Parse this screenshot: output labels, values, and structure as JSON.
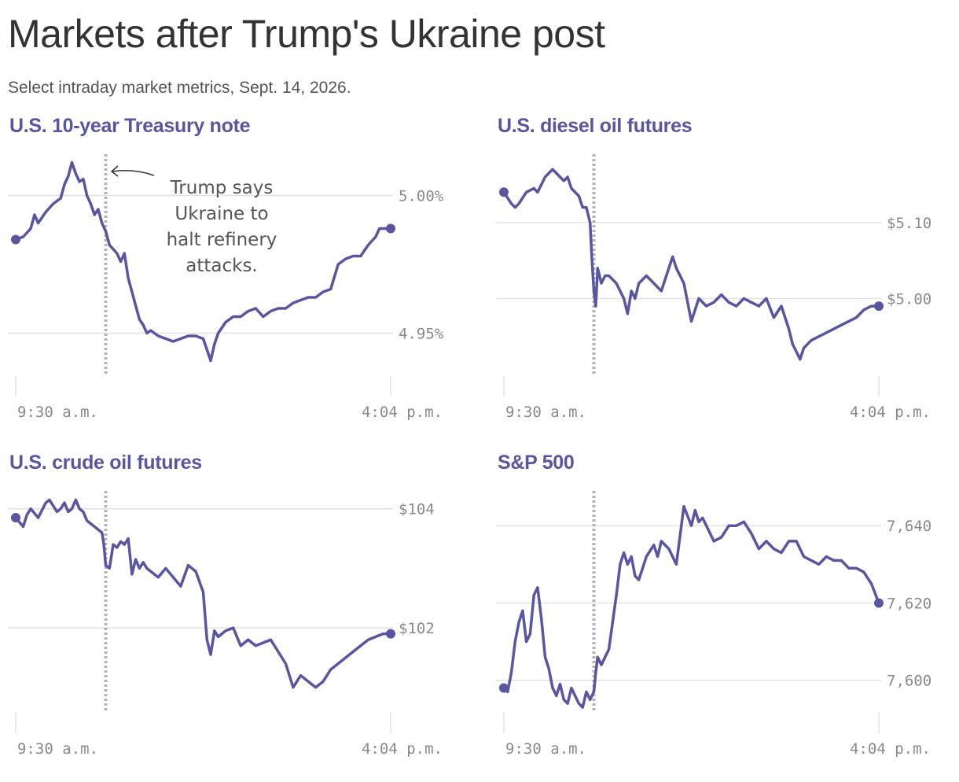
{
  "header": {
    "title": "Markets after Trump's Ukraine post",
    "subtitle": "Select intraday market metrics, Sept. 14, 2026."
  },
  "colors": {
    "line": "#5a55a0",
    "grid": "#e2e2e2",
    "event_line": "#b4b4b4",
    "tick_text": "#8a8a8a"
  },
  "chart_data": [
    {
      "type": "line",
      "title": "U.S. 10-year Treasury note",
      "x_ticks": [
        "9:30 a.m.",
        "4:04 p.m."
      ],
      "y_ticks": [
        {
          "value": 5.0,
          "label": "5.00%"
        },
        {
          "value": 4.95,
          "label": "4.95%"
        }
      ],
      "ylim": [
        4.935,
        5.015
      ],
      "event_x": 0.24,
      "annotation": [
        "Trump says",
        "Ukraine to",
        "halt refinery",
        "attacks."
      ],
      "series": [
        {
          "x": [
            0,
            0.02,
            0.04,
            0.05,
            0.06,
            0.08,
            0.1,
            0.12,
            0.13,
            0.14,
            0.15,
            0.16,
            0.17,
            0.18,
            0.19,
            0.2,
            0.21,
            0.22,
            0.23,
            0.24,
            0.25,
            0.27,
            0.28,
            0.29,
            0.3,
            0.31,
            0.32,
            0.33,
            0.34,
            0.35,
            0.36,
            0.38,
            0.4,
            0.42,
            0.44,
            0.46,
            0.48,
            0.5,
            0.51,
            0.52,
            0.53,
            0.54,
            0.56,
            0.58,
            0.6,
            0.62,
            0.64,
            0.66,
            0.68,
            0.7,
            0.72,
            0.74,
            0.76,
            0.78,
            0.8,
            0.82,
            0.84,
            0.86,
            0.88,
            0.9,
            0.92,
            0.94,
            0.96,
            0.97,
            0.98,
            1.0
          ],
          "values": [
            4.984,
            4.985,
            4.988,
            4.993,
            4.99,
            4.994,
            4.997,
            4.999,
            5.004,
            5.007,
            5.012,
            5.008,
            5.005,
            5.006,
            5.0,
            4.997,
            4.993,
            4.995,
            4.99,
            4.987,
            4.982,
            4.979,
            4.976,
            4.979,
            4.97,
            4.965,
            4.96,
            4.955,
            4.953,
            4.95,
            4.951,
            4.949,
            4.948,
            4.947,
            4.948,
            4.949,
            4.949,
            4.948,
            4.944,
            4.94,
            4.946,
            4.95,
            4.954,
            4.956,
            4.956,
            4.958,
            4.959,
            4.956,
            4.958,
            4.959,
            4.959,
            4.961,
            4.962,
            4.963,
            4.963,
            4.965,
            4.966,
            4.975,
            4.977,
            4.978,
            4.978,
            4.982,
            4.985,
            4.988,
            4.988,
            4.988
          ]
        }
      ]
    },
    {
      "type": "line",
      "title": "U.S. diesel oil futures",
      "x_ticks": [
        "9:30 a.m.",
        "4:04 p.m."
      ],
      "y_ticks": [
        {
          "value": 5.1,
          "label": "$5.10"
        },
        {
          "value": 5.0,
          "label": "$5.00"
        }
      ],
      "ylim": [
        4.9,
        5.19
      ],
      "event_x": 0.24,
      "series": [
        {
          "x": [
            0,
            0.02,
            0.03,
            0.04,
            0.06,
            0.08,
            0.09,
            0.1,
            0.11,
            0.12,
            0.13,
            0.14,
            0.15,
            0.16,
            0.17,
            0.18,
            0.2,
            0.21,
            0.22,
            0.23,
            0.235,
            0.24,
            0.245,
            0.25,
            0.26,
            0.27,
            0.28,
            0.3,
            0.32,
            0.33,
            0.34,
            0.35,
            0.36,
            0.38,
            0.4,
            0.42,
            0.44,
            0.45,
            0.46,
            0.47,
            0.48,
            0.5,
            0.52,
            0.54,
            0.56,
            0.58,
            0.6,
            0.62,
            0.64,
            0.66,
            0.68,
            0.7,
            0.72,
            0.74,
            0.76,
            0.77,
            0.78,
            0.79,
            0.8,
            0.82,
            0.84,
            0.86,
            0.88,
            0.9,
            0.92,
            0.94,
            0.96,
            0.98,
            1.0
          ],
          "values": [
            5.14,
            5.125,
            5.12,
            5.125,
            5.14,
            5.145,
            5.14,
            5.15,
            5.16,
            5.165,
            5.17,
            5.165,
            5.16,
            5.155,
            5.16,
            5.145,
            5.135,
            5.12,
            5.12,
            5.1,
            5.05,
            5.01,
            4.99,
            5.04,
            5.02,
            5.03,
            5.03,
            5.02,
            5.0,
            4.98,
            5.01,
            5.0,
            5.02,
            5.03,
            5.02,
            5.01,
            5.04,
            5.055,
            5.04,
            5.03,
            5.02,
            4.97,
            5.0,
            4.99,
            4.995,
            5.005,
            4.995,
            4.99,
            5.0,
            4.995,
            4.99,
            5.0,
            4.975,
            4.99,
            4.96,
            4.94,
            4.93,
            4.92,
            4.935,
            4.945,
            4.95,
            4.955,
            4.96,
            4.965,
            4.97,
            4.975,
            4.985,
            4.99,
            4.99
          ]
        }
      ]
    },
    {
      "type": "line",
      "title": "U.S. crude oil futures",
      "x_ticks": [
        "9:30 a.m.",
        "4:04 p.m."
      ],
      "y_ticks": [
        {
          "value": 104,
          "label": "$104"
        },
        {
          "value": 102,
          "label": "$102"
        }
      ],
      "ylim": [
        100.6,
        104.3
      ],
      "event_x": 0.24,
      "series": [
        {
          "x": [
            0,
            0.02,
            0.03,
            0.04,
            0.06,
            0.08,
            0.09,
            0.1,
            0.11,
            0.12,
            0.13,
            0.14,
            0.15,
            0.16,
            0.17,
            0.18,
            0.19,
            0.2,
            0.21,
            0.22,
            0.23,
            0.235,
            0.24,
            0.25,
            0.26,
            0.27,
            0.28,
            0.29,
            0.3,
            0.31,
            0.32,
            0.33,
            0.34,
            0.35,
            0.36,
            0.38,
            0.4,
            0.42,
            0.44,
            0.46,
            0.48,
            0.5,
            0.51,
            0.52,
            0.53,
            0.54,
            0.56,
            0.58,
            0.6,
            0.62,
            0.64,
            0.66,
            0.68,
            0.7,
            0.72,
            0.74,
            0.76,
            0.78,
            0.8,
            0.82,
            0.84,
            0.86,
            0.88,
            0.9,
            0.92,
            0.94,
            0.96,
            0.98,
            1.0
          ],
          "values": [
            103.85,
            103.7,
            103.9,
            104.0,
            103.85,
            104.1,
            104.15,
            104.05,
            103.95,
            104.0,
            104.1,
            103.95,
            104.0,
            104.15,
            104.0,
            103.95,
            103.8,
            103.75,
            103.7,
            103.65,
            103.6,
            103.4,
            103.05,
            103.0,
            103.4,
            103.35,
            103.45,
            103.4,
            103.5,
            102.9,
            103.15,
            103.0,
            103.1,
            103.0,
            102.95,
            102.85,
            103.0,
            102.85,
            102.7,
            103.05,
            102.95,
            102.6,
            101.8,
            101.55,
            101.95,
            101.85,
            101.95,
            102.0,
            101.7,
            101.8,
            101.7,
            101.75,
            101.8,
            101.6,
            101.4,
            101.0,
            101.2,
            101.1,
            101.0,
            101.1,
            101.3,
            101.4,
            101.5,
            101.6,
            101.7,
            101.8,
            101.85,
            101.9,
            101.9
          ]
        }
      ]
    },
    {
      "type": "line",
      "title": "S&P 500",
      "x_ticks": [
        "9:30 a.m.",
        "4:04 p.m."
      ],
      "y_ticks": [
        {
          "value": 7640,
          "label": "7,640"
        },
        {
          "value": 7620,
          "label": "7,620"
        },
        {
          "value": 7600,
          "label": "7,600"
        }
      ],
      "ylim": [
        7592,
        7649
      ],
      "event_x": 0.24,
      "series": [
        {
          "x": [
            0,
            0.01,
            0.02,
            0.03,
            0.04,
            0.05,
            0.06,
            0.07,
            0.08,
            0.09,
            0.1,
            0.11,
            0.12,
            0.13,
            0.14,
            0.15,
            0.16,
            0.17,
            0.18,
            0.19,
            0.2,
            0.21,
            0.22,
            0.23,
            0.24,
            0.245,
            0.25,
            0.26,
            0.27,
            0.28,
            0.3,
            0.31,
            0.32,
            0.33,
            0.34,
            0.35,
            0.36,
            0.38,
            0.4,
            0.41,
            0.42,
            0.44,
            0.46,
            0.48,
            0.5,
            0.51,
            0.52,
            0.53,
            0.54,
            0.56,
            0.58,
            0.6,
            0.62,
            0.64,
            0.66,
            0.68,
            0.7,
            0.72,
            0.74,
            0.76,
            0.78,
            0.8,
            0.82,
            0.84,
            0.86,
            0.88,
            0.9,
            0.92,
            0.94,
            0.96,
            0.98,
            1.0
          ],
          "values": [
            7598,
            7597,
            7602,
            7610,
            7615,
            7618,
            7610,
            7612,
            7622,
            7624,
            7616,
            7606,
            7603,
            7598,
            7596,
            7599,
            7595,
            7594,
            7598,
            7596,
            7594,
            7593,
            7597,
            7595,
            7597,
            7602,
            7606,
            7604,
            7606,
            7608,
            7622,
            7630,
            7633,
            7630,
            7632,
            7627,
            7626,
            7632,
            7635,
            7632,
            7636,
            7634,
            7630,
            7645,
            7640,
            7644,
            7641,
            7642,
            7640,
            7636,
            7637,
            7640,
            7640,
            7641,
            7638,
            7634,
            7636,
            7634,
            7633,
            7636,
            7636,
            7632,
            7631,
            7630,
            7632,
            7631,
            7631,
            7629,
            7629,
            7628,
            7625,
            7620
          ]
        }
      ]
    }
  ]
}
